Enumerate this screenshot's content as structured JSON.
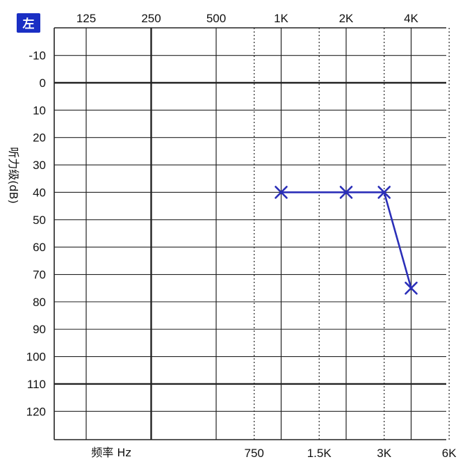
{
  "ear_label": "左",
  "colors": {
    "badge": "#1a2fc4",
    "series": "#2b2fb8",
    "grid": "#222222"
  },
  "chart_data": {
    "type": "line",
    "title": "",
    "xscale": "log",
    "ylabel": "听力级(dB)",
    "xlabel": "频率 Hz",
    "ylim": [
      -20,
      130
    ],
    "y_ticks": [
      -10,
      0,
      10,
      20,
      30,
      40,
      50,
      60,
      70,
      80,
      90,
      100,
      110,
      120
    ],
    "x_ticks_top": [
      {
        "label": "125",
        "hz": 125
      },
      {
        "label": "250",
        "hz": 250
      },
      {
        "label": "500",
        "hz": 500
      },
      {
        "label": "1K",
        "hz": 1000
      },
      {
        "label": "2K",
        "hz": 2000
      },
      {
        "label": "4K",
        "hz": 4000
      }
    ],
    "x_ticks_bottom": [
      {
        "label": "750",
        "hz": 750
      },
      {
        "label": "1.5K",
        "hz": 1500
      },
      {
        "label": "3K",
        "hz": 3000
      },
      {
        "label": "6K",
        "hz": 6000
      }
    ],
    "grid": true,
    "series": [
      {
        "marker": "x",
        "x": [
          1000,
          2000,
          3000,
          4000
        ],
        "y": [
          40,
          40,
          40,
          75
        ]
      }
    ]
  }
}
